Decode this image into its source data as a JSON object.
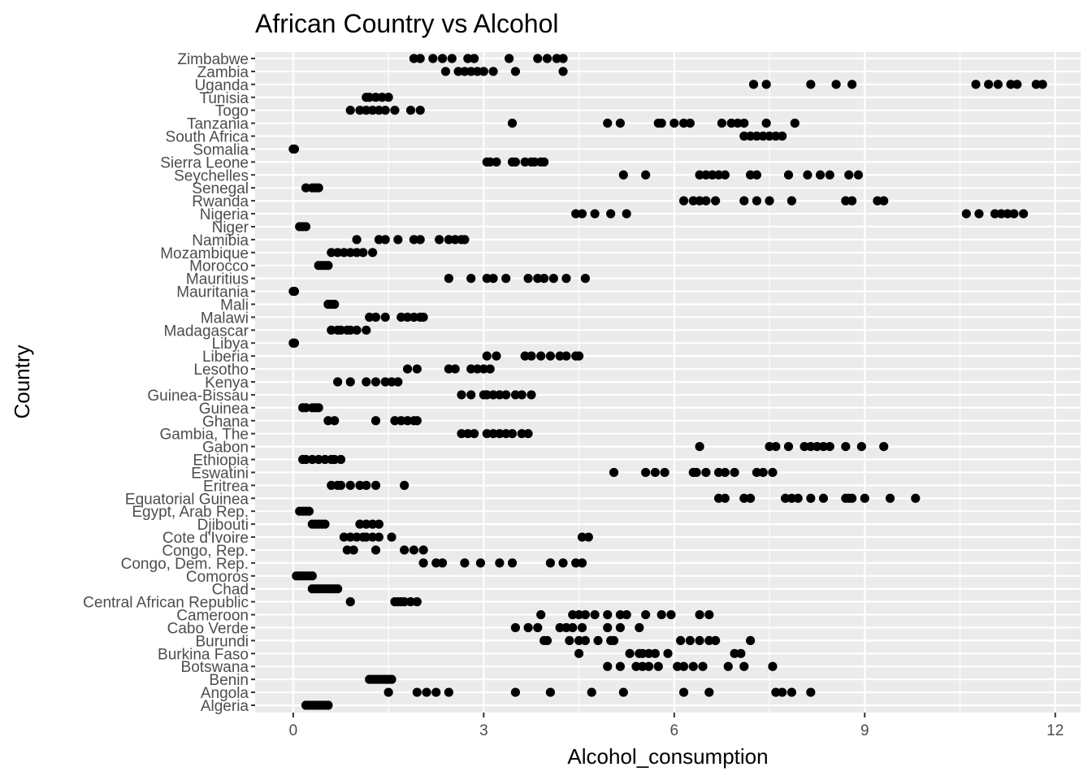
{
  "chart_data": {
    "type": "scatter",
    "title": "African Country vs Alcohol",
    "xlabel": "Alcohol_consumption",
    "ylabel": "Country",
    "xlim": [
      -0.6,
      12.4
    ],
    "x_ticks": [
      0,
      3,
      6,
      9,
      12
    ],
    "grid": true,
    "categories": [
      "Algeria",
      "Angola",
      "Benin",
      "Botswana",
      "Burkina Faso",
      "Burundi",
      "Cabo Verde",
      "Cameroon",
      "Central African Republic",
      "Chad",
      "Comoros",
      "Congo, Dem. Rep.",
      "Congo, Rep.",
      "Cote d'Ivoire",
      "Djibouti",
      "Egypt, Arab Rep.",
      "Equatorial Guinea",
      "Eritrea",
      "Eswatini",
      "Ethiopia",
      "Gabon",
      "Gambia, The",
      "Ghana",
      "Guinea",
      "Guinea-Bissau",
      "Kenya",
      "Lesotho",
      "Liberia",
      "Libya",
      "Madagascar",
      "Malawi",
      "Mali",
      "Mauritania",
      "Mauritius",
      "Morocco",
      "Mozambique",
      "Namibia",
      "Niger",
      "Nigeria",
      "Rwanda",
      "Senegal",
      "Seychelles",
      "Sierra Leone",
      "Somalia",
      "South Africa",
      "Tanzania",
      "Togo",
      "Tunisia",
      "Uganda",
      "Zambia",
      "Zimbabwe"
    ],
    "points": {
      "Algeria": [
        0.2,
        0.25,
        0.3,
        0.35,
        0.4,
        0.45,
        0.5,
        0.55
      ],
      "Angola": [
        1.5,
        1.95,
        2.1,
        2.25,
        2.45,
        3.5,
        4.05,
        4.7,
        5.2,
        6.15,
        6.55,
        7.6,
        7.7,
        7.85,
        8.15
      ],
      "Benin": [
        1.2,
        1.25,
        1.3,
        1.35,
        1.4,
        1.45,
        1.5,
        1.55
      ],
      "Botswana": [
        4.95,
        5.15,
        5.4,
        5.5,
        5.6,
        5.75,
        6.05,
        6.15,
        6.3,
        6.45,
        6.85,
        7.1,
        7.55
      ],
      "Burkina Faso": [
        4.5,
        5.3,
        5.45,
        5.5,
        5.6,
        5.7,
        5.9,
        6.95,
        7.05
      ],
      "Burundi": [
        3.95,
        4.0,
        4.35,
        4.5,
        4.6,
        4.8,
        5.0,
        5.05,
        6.1,
        6.25,
        6.4,
        6.55,
        6.65,
        7.2
      ],
      "Cabo Verde": [
        3.5,
        3.7,
        3.85,
        4.2,
        4.3,
        4.4,
        4.55,
        4.95,
        5.15,
        5.45
      ],
      "Cameroon": [
        3.9,
        4.4,
        4.5,
        4.6,
        4.75,
        4.95,
        5.15,
        5.25,
        5.55,
        5.8,
        5.95,
        6.4,
        6.55
      ],
      "Central African Republic": [
        0.9,
        1.6,
        1.65,
        1.7,
        1.75,
        1.85,
        1.95
      ],
      "Chad": [
        0.3,
        0.35,
        0.4,
        0.45,
        0.5,
        0.55,
        0.6,
        0.65,
        0.7
      ],
      "Comoros": [
        0.05,
        0.1,
        0.15,
        0.2,
        0.25,
        0.3
      ],
      "Congo, Dem. Rep.": [
        2.05,
        2.25,
        2.35,
        2.7,
        2.95,
        3.25,
        3.45,
        4.05,
        4.25,
        4.45,
        4.55
      ],
      "Congo, Rep.": [
        0.85,
        0.95,
        1.3,
        1.75,
        1.9,
        2.05
      ],
      "Cote d'Ivoire": [
        0.8,
        0.9,
        1.0,
        1.1,
        1.15,
        1.25,
        1.35,
        1.55,
        4.55,
        4.65
      ],
      "Djibouti": [
        0.3,
        0.35,
        0.4,
        0.45,
        0.5,
        1.05,
        1.15,
        1.25,
        1.35
      ],
      "Egypt, Arab Rep.": [
        0.1,
        0.15,
        0.2,
        0.25
      ],
      "Equatorial Guinea": [
        6.7,
        6.8,
        7.1,
        7.2,
        7.75,
        7.85,
        7.95,
        8.15,
        8.35,
        8.7,
        8.75,
        8.8,
        9.0,
        9.4,
        9.8
      ],
      "Eritrea": [
        0.6,
        0.7,
        0.75,
        0.9,
        1.05,
        1.15,
        1.3,
        1.75
      ],
      "Eswatini": [
        5.05,
        5.55,
        5.7,
        5.85,
        6.3,
        6.35,
        6.5,
        6.7,
        6.8,
        6.95,
        7.3,
        7.4,
        7.55
      ],
      "Ethiopia": [
        0.15,
        0.2,
        0.3,
        0.4,
        0.5,
        0.6,
        0.65,
        0.75
      ],
      "Gabon": [
        6.4,
        7.5,
        7.6,
        7.8,
        8.05,
        8.15,
        8.25,
        8.35,
        8.45,
        8.7,
        8.95,
        9.3
      ],
      "Gambia, The": [
        2.65,
        2.75,
        2.85,
        3.05,
        3.15,
        3.25,
        3.35,
        3.45,
        3.6,
        3.7
      ],
      "Ghana": [
        0.55,
        0.65,
        1.3,
        1.6,
        1.7,
        1.8,
        1.9,
        1.95
      ],
      "Guinea": [
        0.15,
        0.2,
        0.3,
        0.35,
        0.4
      ],
      "Guinea-Bissau": [
        2.65,
        2.8,
        3.0,
        3.05,
        3.15,
        3.25,
        3.35,
        3.5,
        3.6,
        3.75
      ],
      "Kenya": [
        0.7,
        0.9,
        1.15,
        1.3,
        1.45,
        1.55,
        1.65
      ],
      "Lesotho": [
        1.8,
        1.95,
        2.45,
        2.55,
        2.8,
        2.9,
        3.0,
        3.1
      ],
      "Liberia": [
        3.05,
        3.2,
        3.65,
        3.75,
        3.9,
        4.05,
        4.2,
        4.3,
        4.45,
        4.5
      ],
      "Libya": [
        0.0,
        0.01,
        0.02
      ],
      "Madagascar": [
        0.6,
        0.7,
        0.75,
        0.85,
        0.9,
        1.0,
        1.15
      ],
      "Malawi": [
        1.2,
        1.3,
        1.45,
        1.7,
        1.8,
        1.9,
        2.0,
        2.05
      ],
      "Mali": [
        0.55,
        0.6,
        0.65
      ],
      "Mauritania": [
        0.0,
        0.01,
        0.02
      ],
      "Mauritius": [
        2.45,
        2.8,
        3.05,
        3.15,
        3.35,
        3.7,
        3.85,
        3.95,
        4.1,
        4.3,
        4.6
      ],
      "Morocco": [
        0.4,
        0.45,
        0.5,
        0.55
      ],
      "Mozambique": [
        0.6,
        0.7,
        0.8,
        0.9,
        1.0,
        1.1,
        1.25
      ],
      "Namibia": [
        1.0,
        1.35,
        1.45,
        1.65,
        1.9,
        2.0,
        2.3,
        2.45,
        2.55,
        2.65,
        2.7
      ],
      "Niger": [
        0.1,
        0.15,
        0.2
      ],
      "Nigeria": [
        4.45,
        4.55,
        4.75,
        5.0,
        5.25,
        10.6,
        10.8,
        11.05,
        11.15,
        11.25,
        11.35,
        11.5
      ],
      "Rwanda": [
        6.15,
        6.3,
        6.4,
        6.5,
        6.65,
        7.1,
        7.3,
        7.5,
        7.85,
        8.7,
        8.8,
        9.2,
        9.3
      ],
      "Senegal": [
        0.2,
        0.3,
        0.35,
        0.4
      ],
      "Seychelles": [
        5.2,
        5.55,
        6.4,
        6.5,
        6.6,
        6.7,
        6.8,
        7.2,
        7.3,
        7.8,
        8.1,
        8.3,
        8.45,
        8.75,
        8.9
      ],
      "Sierra Leone": [
        3.05,
        3.1,
        3.2,
        3.45,
        3.5,
        3.65,
        3.75,
        3.8,
        3.9,
        3.95
      ],
      "Somalia": [
        0.0,
        0.01,
        0.02
      ],
      "South Africa": [
        7.1,
        7.2,
        7.3,
        7.4,
        7.5,
        7.6,
        7.7
      ],
      "Tanzania": [
        3.45,
        4.95,
        5.15,
        5.75,
        5.8,
        6.0,
        6.15,
        6.25,
        6.75,
        6.9,
        7.0,
        7.1,
        7.45,
        7.9
      ],
      "Togo": [
        0.9,
        1.05,
        1.15,
        1.25,
        1.35,
        1.45,
        1.6,
        1.85,
        2.0
      ],
      "Tunisia": [
        1.15,
        1.2,
        1.3,
        1.4,
        1.5
      ],
      "Uganda": [
        7.25,
        7.45,
        8.15,
        8.55,
        8.8,
        10.75,
        10.95,
        11.1,
        11.3,
        11.4,
        11.7,
        11.8
      ],
      "Zambia": [
        2.4,
        2.6,
        2.7,
        2.8,
        2.9,
        3.0,
        3.15,
        3.5,
        4.25
      ],
      "Zimbabwe": [
        1.9,
        2.0,
        2.2,
        2.35,
        2.5,
        2.75,
        2.85,
        3.4,
        3.85,
        4.0,
        4.15,
        4.25
      ]
    }
  }
}
